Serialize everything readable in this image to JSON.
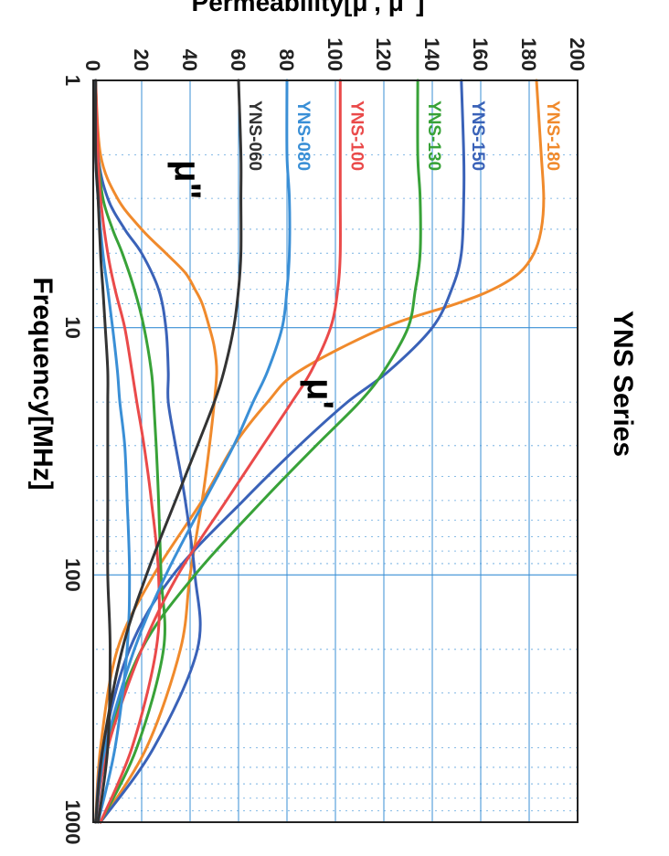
{
  "chart_data": {
    "type": "line",
    "title": "YNS Series",
    "xlabel": "Frequency[MHz]",
    "ylabel": "Permeability[μ', μ\"]",
    "x_scale": "log",
    "xlim": [
      1,
      1000
    ],
    "ylim": [
      0,
      200
    ],
    "x_ticks": [
      "1",
      "10",
      "100",
      "1000"
    ],
    "y_ticks": [
      "0",
      "20",
      "40",
      "60",
      "80",
      "100",
      "120",
      "140",
      "160",
      "180",
      "200"
    ],
    "grid": true,
    "annotations": {
      "mu_prime": "μ'",
      "mu_double_prime": "μ\""
    },
    "colors": {
      "title": "#2b6cb0",
      "grid": "#3a8fd6",
      "axes": "#222222",
      "text": "#222222"
    },
    "series": [
      {
        "name": "YNS-180",
        "color": "#f08a2c",
        "mu_prime": {
          "x": [
            1,
            2,
            3,
            4,
            5,
            6,
            7,
            8,
            10,
            15,
            20,
            30,
            50,
            100,
            200,
            500,
            1000
          ],
          "y": [
            183,
            185,
            186,
            185,
            182,
            176,
            165,
            150,
            120,
            85,
            72,
            58,
            45,
            25,
            10,
            3,
            1
          ]
        },
        "mu_double_prime": {
          "x": [
            1,
            2,
            3,
            4,
            5,
            6,
            7,
            8,
            10,
            12,
            15,
            20,
            30,
            50,
            100,
            200,
            500,
            1000
          ],
          "y": [
            1,
            3,
            10,
            20,
            30,
            38,
            42,
            45,
            48,
            50,
            51,
            50,
            48,
            45,
            40,
            36,
            22,
            3
          ]
        }
      },
      {
        "name": "YNS-150",
        "color": "#3a62b8",
        "mu_prime": {
          "x": [
            1,
            2,
            3,
            5,
            7,
            10,
            15,
            20,
            30,
            50,
            100,
            200,
            500,
            1000
          ],
          "y": [
            152,
            153,
            153,
            152,
            148,
            140,
            122,
            105,
            85,
            62,
            33,
            15,
            4,
            1
          ]
        },
        "mu_double_prime": {
          "x": [
            1,
            2,
            3,
            4,
            5,
            7,
            10,
            15,
            20,
            30,
            50,
            100,
            200,
            500,
            1000
          ],
          "y": [
            1,
            2,
            6,
            13,
            20,
            27,
            30,
            31,
            31,
            34,
            38,
            42,
            43,
            25,
            3
          ]
        }
      },
      {
        "name": "YNS-130",
        "color": "#38a238",
        "mu_prime": {
          "x": [
            1,
            2,
            3,
            5,
            7,
            10,
            15,
            20,
            30,
            50,
            100,
            200,
            500,
            1000
          ],
          "y": [
            134,
            134,
            135,
            135,
            133,
            130,
            120,
            110,
            92,
            70,
            42,
            20,
            5,
            1
          ]
        },
        "mu_double_prime": {
          "x": [
            1,
            2,
            3,
            4,
            5,
            7,
            10,
            15,
            20,
            30,
            50,
            100,
            200,
            500,
            1000
          ],
          "y": [
            1,
            2,
            4,
            8,
            12,
            17,
            21,
            24,
            25,
            26,
            27,
            28,
            29,
            18,
            3
          ]
        }
      },
      {
        "name": "YNS-100",
        "color": "#ea4a4a",
        "mu_prime": {
          "x": [
            1,
            2,
            3,
            5,
            7,
            10,
            15,
            20,
            30,
            50,
            100,
            200,
            500,
            1000
          ],
          "y": [
            102,
            102,
            102,
            102,
            101,
            98,
            90,
            82,
            70,
            55,
            35,
            20,
            6,
            1
          ]
        },
        "mu_double_prime": {
          "x": [
            1,
            2,
            3,
            5,
            7,
            10,
            15,
            20,
            30,
            50,
            100,
            200,
            500,
            1000
          ],
          "y": [
            1,
            2,
            3,
            6,
            9,
            13,
            16,
            18,
            21,
            24,
            27,
            26,
            16,
            3
          ]
        }
      },
      {
        "name": "YNS-080",
        "color": "#3a8fd6",
        "mu_prime": {
          "x": [
            1,
            2,
            3,
            5,
            7,
            10,
            15,
            20,
            30,
            50,
            100,
            200,
            500,
            1000
          ],
          "y": [
            80,
            80,
            81,
            81,
            80,
            78,
            72,
            66,
            58,
            46,
            30,
            17,
            5,
            1
          ]
        },
        "mu_double_prime": {
          "x": [
            1,
            2,
            3,
            5,
            7,
            10,
            15,
            20,
            30,
            50,
            100,
            200,
            500,
            1000
          ],
          "y": [
            1,
            1,
            2,
            4,
            6,
            8,
            10,
            11,
            13,
            14,
            15,
            14,
            9,
            2
          ]
        }
      },
      {
        "name": "YNS-060",
        "color": "#333333",
        "mu_prime": {
          "x": [
            1,
            2,
            3,
            5,
            7,
            10,
            15,
            20,
            30,
            50,
            100,
            200,
            500,
            1000
          ],
          "y": [
            60,
            61,
            61,
            61,
            60,
            58,
            54,
            50,
            43,
            34,
            22,
            12,
            4,
            1
          ]
        },
        "mu_double_prime": {
          "x": [
            1,
            2,
            3,
            5,
            7,
            10,
            15,
            20,
            30,
            50,
            100,
            200,
            500,
            1000
          ],
          "y": [
            1,
            1,
            2,
            3,
            4,
            5,
            6,
            6,
            6,
            6,
            6,
            7,
            6,
            2
          ]
        }
      }
    ]
  }
}
